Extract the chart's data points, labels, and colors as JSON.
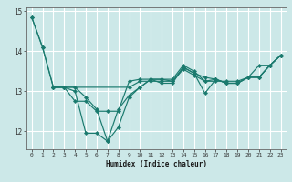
{
  "title": "",
  "xlabel": "Humidex (Indice chaleur)",
  "ylabel": "",
  "bg_color": "#cce8e8",
  "grid_color": "#ffffff",
  "line_color": "#1a7a6e",
  "xlim": [
    -0.5,
    23.5
  ],
  "ylim": [
    11.55,
    15.1
  ],
  "yticks": [
    12,
    13,
    14,
    15
  ],
  "xticks": [
    0,
    1,
    2,
    3,
    4,
    5,
    6,
    7,
    8,
    9,
    10,
    11,
    12,
    13,
    14,
    15,
    16,
    17,
    18,
    19,
    20,
    21,
    22,
    23
  ],
  "lines": [
    {
      "x": [
        0,
        1,
        2,
        3,
        4,
        5,
        6,
        7,
        8,
        9,
        10,
        11,
        12,
        13,
        14,
        15,
        16,
        17,
        18,
        19,
        20,
        21,
        22,
        23
      ],
      "y": [
        14.85,
        14.1,
        13.1,
        13.1,
        13.1,
        12.85,
        12.55,
        11.75,
        12.1,
        12.85,
        13.1,
        13.3,
        13.3,
        13.25,
        13.6,
        13.45,
        12.95,
        13.3,
        13.2,
        13.2,
        13.35,
        13.35,
        13.65,
        13.9
      ]
    },
    {
      "x": [
        0,
        1,
        2,
        3,
        4,
        5,
        6,
        7,
        8,
        9,
        10,
        11,
        12,
        13,
        14,
        15,
        16,
        17,
        18,
        19,
        20,
        21,
        22,
        23
      ],
      "y": [
        14.85,
        14.1,
        13.1,
        13.1,
        13.0,
        11.95,
        11.95,
        11.75,
        12.55,
        12.9,
        13.1,
        13.3,
        13.3,
        13.3,
        13.65,
        13.5,
        13.25,
        13.3,
        13.2,
        13.2,
        13.35,
        13.65,
        13.65,
        13.9
      ]
    },
    {
      "x": [
        2,
        3,
        4,
        5,
        6,
        7,
        8,
        9,
        10,
        11,
        12,
        13,
        14,
        15,
        16,
        17,
        18,
        19,
        20,
        21,
        22,
        23
      ],
      "y": [
        13.1,
        13.1,
        12.75,
        12.75,
        12.5,
        12.5,
        12.5,
        13.25,
        13.3,
        13.3,
        13.2,
        13.2,
        13.6,
        13.45,
        13.35,
        13.3,
        13.2,
        13.2,
        13.35,
        13.35,
        13.65,
        13.9
      ]
    },
    {
      "x": [
        2,
        3,
        9,
        10,
        11,
        12,
        13,
        14,
        15,
        16,
        17,
        18,
        19,
        20,
        21,
        22,
        23
      ],
      "y": [
        13.1,
        13.1,
        13.1,
        13.25,
        13.25,
        13.25,
        13.25,
        13.55,
        13.4,
        13.25,
        13.25,
        13.25,
        13.25,
        13.35,
        13.35,
        13.65,
        13.9
      ]
    }
  ]
}
